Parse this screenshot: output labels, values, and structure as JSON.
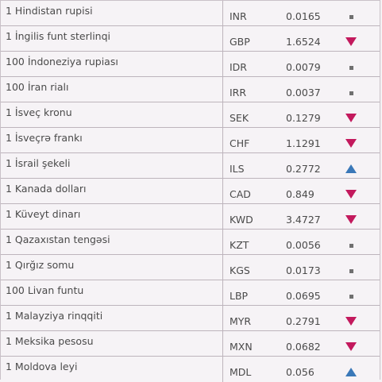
{
  "rows": [
    {
      "name": "1 Hindistan rupisi",
      "code": "INR",
      "rate": "0.0165",
      "trend": "neutral"
    },
    {
      "name": "1 İngilis funt sterlinqi",
      "code": "GBP",
      "rate": "1.6524",
      "trend": "down"
    },
    {
      "name": "100 İndoneziya rupiası",
      "code": "IDR",
      "rate": "0.0079",
      "trend": "neutral"
    },
    {
      "name": "100 İran rialı",
      "code": "IRR",
      "rate": "0.0037",
      "trend": "neutral"
    },
    {
      "name": "1 İsveç kronu",
      "code": "SEK",
      "rate": "0.1279",
      "trend": "down"
    },
    {
      "name": "1 İsveçrə frankı",
      "code": "CHF",
      "rate": "1.1291",
      "trend": "down"
    },
    {
      "name": "1 İsrail şekeli",
      "code": "ILS",
      "rate": "0.2772",
      "trend": "up"
    },
    {
      "name": "1 Kanada dolları",
      "code": "CAD",
      "rate": "0.849",
      "trend": "down"
    },
    {
      "name": "1 Küveyt dinarı",
      "code": "KWD",
      "rate": "3.4727",
      "trend": "down"
    },
    {
      "name": "1 Qazaxıstan tengəsi",
      "code": "KZT",
      "rate": "0.0056",
      "trend": "neutral"
    },
    {
      "name": "1 Qırğız somu",
      "code": "KGS",
      "rate": "0.0173",
      "trend": "neutral"
    },
    {
      "name": "100 Livan funtu",
      "code": "LBP",
      "rate": "0.0695",
      "trend": "neutral"
    },
    {
      "name": "1 Malayziya rinqqiti",
      "code": "MYR",
      "rate": "0.2791",
      "trend": "down"
    },
    {
      "name": "1 Meksika pesosu",
      "code": "MXN",
      "rate": "0.0682",
      "trend": "down"
    },
    {
      "name": "1 Moldova leyi",
      "code": "MDL",
      "rate": "0.056",
      "trend": "up"
    }
  ],
  "colors": {
    "down": "#c3195d",
    "up": "#3a78b8",
    "neutral": "#707070"
  }
}
